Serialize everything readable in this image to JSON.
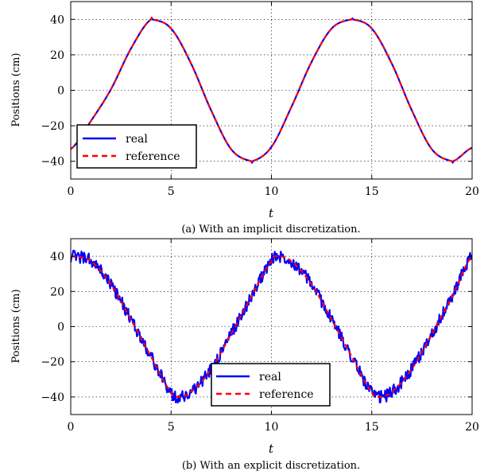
{
  "chart_data": [
    {
      "type": "line",
      "panel": "a",
      "caption": "(a) With an implicit discretization.",
      "xlabel": "t",
      "ylabel": "Positions (cm)",
      "xlim": [
        0,
        20
      ],
      "ylim": [
        -50,
        50
      ],
      "xticks": [
        "0",
        "5",
        "10",
        "15",
        "20"
      ],
      "yticks": [
        "40",
        "20",
        "0",
        "−20",
        "−40"
      ],
      "grid": true,
      "legend_position": "lower-left",
      "series": [
        {
          "name": "real",
          "color": "#0000ff",
          "style": "solid",
          "x": [
            0,
            1,
            2,
            3,
            4,
            4.05,
            5,
            6,
            7,
            8,
            9,
            9.05,
            10,
            11,
            12,
            13,
            14,
            14.05,
            15,
            16,
            17,
            18,
            19,
            19.05,
            20
          ],
          "y": [
            -33.1,
            -17.4,
            0.5,
            23.5,
            40,
            40,
            34.8,
            15.0,
            -11.4,
            -33.3,
            -40,
            -40,
            -31.9,
            -9.3,
            16.0,
            34.8,
            40,
            40,
            34.8,
            15.0,
            -11.4,
            -33.3,
            -40,
            -40,
            -32.4
          ]
        },
        {
          "name": "reference",
          "color": "#ff0000",
          "style": "dashed",
          "x": [
            0,
            1,
            2,
            3,
            4,
            4.05,
            5,
            6,
            7,
            8,
            9,
            9.05,
            10,
            11,
            12,
            13,
            14,
            14.05,
            15,
            16,
            17,
            18,
            19,
            19.05,
            20
          ],
          "y": [
            -33.1,
            -17.4,
            0.5,
            23.5,
            40,
            40,
            34.8,
            15.0,
            -11.4,
            -33.3,
            -40,
            -40,
            -31.9,
            -9.3,
            16.0,
            34.8,
            40,
            40,
            34.8,
            15.0,
            -11.4,
            -33.3,
            -40,
            -40,
            -32.4
          ]
        }
      ]
    },
    {
      "type": "line",
      "panel": "b",
      "caption": "(b) With an explicit discretization.",
      "xlabel": "t",
      "ylabel": "Positions (cm)",
      "xlim": [
        0,
        20
      ],
      "ylim": [
        -50,
        50
      ],
      "xticks": [
        "0",
        "5",
        "10",
        "15",
        "20"
      ],
      "yticks": [
        "40",
        "20",
        "0",
        "−20",
        "−40"
      ],
      "grid": true,
      "legend_position": "lower-center",
      "series": [
        {
          "name": "real",
          "color": "#0000ff",
          "style": "solid",
          "noise_amplitude": 3.5,
          "x": [
            0,
            0.5,
            1,
            2,
            3,
            4,
            5,
            5.3,
            6,
            7,
            8,
            9,
            10,
            10.3,
            11,
            12,
            13,
            14,
            15,
            15.3,
            16,
            17,
            18,
            19,
            20
          ],
          "y": [
            40,
            39.5,
            37,
            24,
            4,
            -17,
            -37,
            -40,
            -37,
            -24,
            -4,
            17,
            37,
            40,
            37,
            24,
            4,
            -17,
            -37,
            -40,
            -37,
            -24,
            -4,
            17,
            40
          ]
        },
        {
          "name": "reference",
          "color": "#ff0000",
          "style": "dashed",
          "x": [
            0,
            0.5,
            1,
            2,
            3,
            4,
            5,
            5.3,
            6,
            7,
            8,
            9,
            10,
            10.3,
            11,
            12,
            13,
            14,
            15,
            15.3,
            16,
            17,
            18,
            19,
            20
          ],
          "y": [
            40,
            39.5,
            37,
            24,
            4,
            -17,
            -37,
            -40,
            -37,
            -24,
            -4,
            17,
            37,
            40,
            37,
            24,
            4,
            -17,
            -37,
            -40,
            -37,
            -24,
            -4,
            17,
            40
          ]
        }
      ]
    }
  ]
}
